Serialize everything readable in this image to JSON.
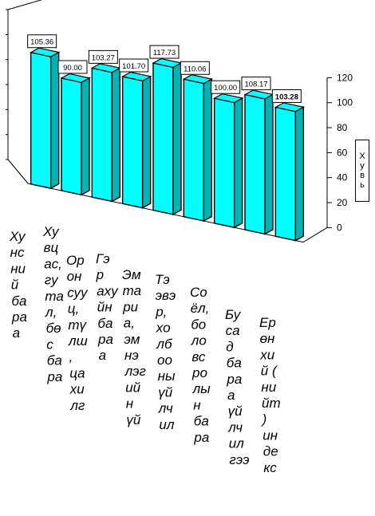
{
  "chart_data": {
    "type": "bar",
    "categories": [
      "Хүнсний бараа",
      "Хувцас, гутал, бөс бараа",
      "Орон сууц, түлш, цахилгаан",
      "Гэр ахуйн бараа",
      "Эмтарга, эмнэлгийн үйлчилгээ",
      "Тээвэр, холбооны үйлчилгээ",
      "Соёл, боловсролын бараа",
      "Бусад бараа, үйлчилгээ",
      "Ерөнхий (нийт) индекс"
    ],
    "category_lines": [
      [
        "Ху",
        "нс",
        "ни",
        "й",
        "ба",
        "ра",
        "а"
      ],
      [
        "Ху",
        "вц",
        "ас,",
        "гу",
        "та",
        "л,",
        "бө",
        "с",
        "ба",
        "ра"
      ],
      [
        "Ор",
        "он",
        "суу",
        "ц,",
        "тү",
        "лш",
        ",",
        "ца",
        "хи",
        "лг"
      ],
      [
        "Гэ",
        "р",
        "аху",
        "йн",
        "ба",
        "ра",
        "а"
      ],
      [
        "Эм",
        "та",
        "ри",
        "а,",
        "эм",
        "нэ",
        "лэг",
        "ий",
        "н",
        "үй"
      ],
      [
        "Тэ",
        "эвэ",
        "р,",
        "хо",
        "лб",
        "оо",
        "ны",
        "үй",
        "лч",
        "ил"
      ],
      [
        "Со",
        "ёл,",
        "бо",
        "ло",
        "вс",
        "ро",
        "лы",
        "н",
        "ба",
        "ра"
      ],
      [
        "Бу",
        "са",
        "д",
        "ба",
        "ра",
        "а",
        "үй",
        "лч",
        "ил",
        "гээ"
      ],
      [
        "Ер",
        "өн",
        "хи",
        "й (",
        "ни",
        "йт",
        ")",
        "ин",
        "де",
        "кс"
      ]
    ],
    "values": [
      105.36,
      90.0,
      103.27,
      101.7,
      117.73,
      110.06,
      100.0,
      108.17,
      103.28
    ],
    "data_labels": [
      "105.36",
      "90.00",
      "103.27",
      "101.70",
      "117.73",
      "110.06",
      "100.00",
      "108.17",
      "103.28"
    ],
    "bold_label_index": 8,
    "ylabel": "Хувь",
    "ylabel_letters": [
      "Х",
      "у",
      "в",
      "ь"
    ],
    "ylim": [
      0,
      120
    ],
    "yticks": [
      "0",
      "20",
      "40",
      "60",
      "80",
      "100",
      "120"
    ],
    "grid": false,
    "legend": "none",
    "colors": {
      "bar_front": "#00ffff",
      "bar_side": "#00b4b4",
      "bar_edge": "#000000"
    }
  }
}
